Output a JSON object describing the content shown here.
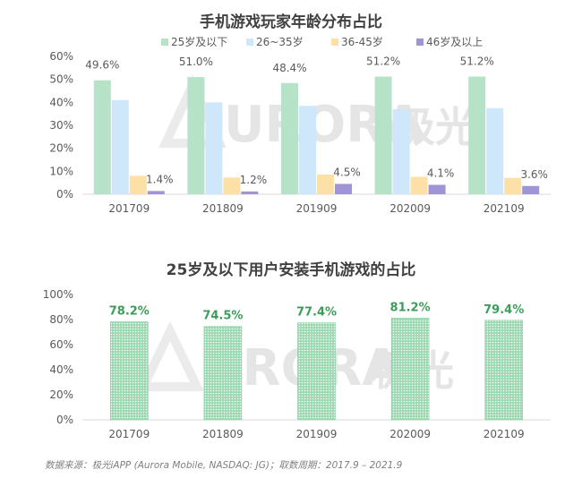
{
  "colors": {
    "s1": "#b6e3c8",
    "s2": "#cfe7fb",
    "s3": "#fde0a6",
    "s4": "#9f94d6",
    "green_bar": "#7cc898",
    "green_label": "#3c9c5a",
    "axis": "#d9d9d9",
    "text": "#595959",
    "watermark": "#e6e6e6"
  },
  "watermark": {
    "text": "URORA",
    "cn": "极光"
  },
  "source_note": "数据来源：极光iAPP (Aurora Mobile, NASDAQ: JG)；取数周期：2017.9 – 2021.9",
  "chart_data": [
    {
      "type": "bar",
      "title": "手机游戏玩家年龄分布占比",
      "categories": [
        "201709",
        "201809",
        "201909",
        "202009",
        "202109"
      ],
      "series": [
        {
          "name": "25岁及以下",
          "color_key": "s1",
          "values": [
            49.6,
            51.0,
            48.4,
            51.2,
            51.2
          ],
          "labeled": true
        },
        {
          "name": "26~35岁",
          "color_key": "s2",
          "values": [
            41.0,
            40.0,
            38.5,
            37.0,
            37.5
          ],
          "labeled": false
        },
        {
          "name": "36-45岁",
          "color_key": "s3",
          "values": [
            8.0,
            7.3,
            8.6,
            7.6,
            7.1
          ],
          "labeled": false
        },
        {
          "name": "46岁及以上",
          "color_key": "s4",
          "values": [
            1.4,
            1.2,
            4.5,
            4.1,
            3.6
          ],
          "labeled": true
        }
      ],
      "data_labels": {
        "25岁及以下": [
          "49.6%",
          "51.0%",
          "48.4%",
          "51.2%",
          "51.2%"
        ],
        "46岁及以上": [
          "1.4%",
          "1.2%",
          "4.5%",
          "4.1%",
          "3.6%"
        ]
      },
      "yticks": [
        "0%",
        "10%",
        "20%",
        "30%",
        "40%",
        "50%",
        "60%"
      ],
      "ylim": [
        0,
        60
      ],
      "legend": "top"
    },
    {
      "type": "bar",
      "title": "25岁及以下用户安装手机游戏的占比",
      "categories": [
        "201709",
        "201809",
        "201909",
        "202009",
        "202109"
      ],
      "values": [
        78.2,
        74.5,
        77.4,
        81.2,
        79.4
      ],
      "data_labels": [
        "78.2%",
        "74.5%",
        "77.4%",
        "81.2%",
        "79.4%"
      ],
      "yticks": [
        "0%",
        "20%",
        "40%",
        "60%",
        "80%",
        "100%"
      ],
      "ylim": [
        0,
        100
      ]
    }
  ]
}
